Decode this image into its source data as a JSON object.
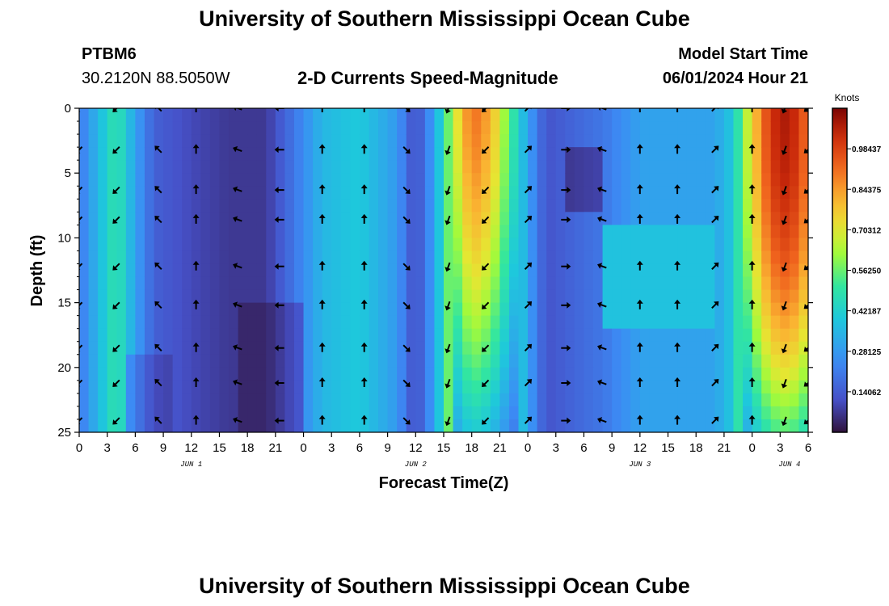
{
  "header": {
    "title": "University of Southern Mississippi Ocean Cube",
    "station": "PTBM6",
    "coords": "30.2120N  88.5050W",
    "chart_title": "2-D Currents Speed-Magnitude",
    "model_start_label": "Model Start Time",
    "model_start_value": "06/01/2024 Hour 21",
    "footer_title": "University of Southern Mississippi Ocean Cube"
  },
  "colorbar": {
    "unit": "Knots",
    "ticks": [
      "0.98437",
      "0.84375",
      "0.70312",
      "0.56250",
      "0.42187",
      "0.28125",
      "0.14062"
    ],
    "tick_values": [
      0.98437,
      0.84375,
      0.70312,
      0.5625,
      0.42187,
      0.28125,
      0.14062
    ],
    "min": 0.0,
    "max": 1.125
  },
  "chart_data": {
    "type": "heatmap",
    "title": "2-D Currents Speed-Magnitude",
    "xlabel": "Forecast Time(Z)",
    "ylabel": "Depth (ft)",
    "x_tick_labels": [
      "0",
      "3",
      "6",
      "9",
      "12",
      "15",
      "18",
      "21",
      "0",
      "3",
      "6",
      "9",
      "12",
      "15",
      "18",
      "21",
      "0",
      "3",
      "6",
      "9",
      "12",
      "15",
      "18",
      "21",
      "0",
      "3",
      "6"
    ],
    "x_range_hours": [
      0,
      78
    ],
    "day_labels": [
      {
        "label": "JUN 1",
        "hour": 12
      },
      {
        "label": "JUN 2",
        "hour": 36
      },
      {
        "label": "JUN 3",
        "hour": 60
      },
      {
        "label": "JUN 4",
        "hour": 76
      }
    ],
    "y_ticks": [
      0,
      5,
      10,
      15,
      20,
      25
    ],
    "ylim": [
      0,
      25
    ],
    "y_inverted": true,
    "value_unit": "Knots",
    "speed_profile": [
      {
        "hour": 0,
        "v": 0.2
      },
      {
        "hour": 2,
        "v": 0.35
      },
      {
        "hour": 4,
        "v": 0.5
      },
      {
        "hour": 6,
        "v": 0.3
      },
      {
        "hour": 8,
        "v": 0.15
      },
      {
        "hour": 12,
        "v": 0.1
      },
      {
        "hour": 16,
        "v": 0.07
      },
      {
        "hour": 20,
        "v": 0.07
      },
      {
        "hour": 23,
        "v": 0.2
      },
      {
        "hour": 26,
        "v": 0.35
      },
      {
        "hour": 30,
        "v": 0.4
      },
      {
        "hour": 34,
        "v": 0.28
      },
      {
        "hour": 36,
        "v": 0.1
      },
      {
        "hour": 38,
        "v": 0.3
      },
      {
        "hour": 40,
        "v": 0.65
      },
      {
        "hour": 42,
        "v": 0.92
      },
      {
        "hour": 44,
        "v": 0.82
      },
      {
        "hour": 46,
        "v": 0.55
      },
      {
        "hour": 48,
        "v": 0.3
      },
      {
        "hour": 50,
        "v": 0.12
      },
      {
        "hour": 52,
        "v": 0.15
      },
      {
        "hour": 56,
        "v": 0.2
      },
      {
        "hour": 60,
        "v": 0.3
      },
      {
        "hour": 64,
        "v": 0.3
      },
      {
        "hour": 68,
        "v": 0.3
      },
      {
        "hour": 70,
        "v": 0.4
      },
      {
        "hour": 72,
        "v": 0.75
      },
      {
        "hour": 74,
        "v": 1.02
      },
      {
        "hour": 76,
        "v": 1.08
      },
      {
        "hour": 78,
        "v": 0.9
      }
    ],
    "arrow_hours": [
      0,
      4,
      8.5,
      12.5,
      17,
      21.5,
      26,
      30.5,
      35,
      39.5,
      43.5,
      48,
      52,
      56,
      60,
      64,
      68,
      72,
      75.5,
      78
    ],
    "arrow_depths": [
      0,
      3.2,
      6.3,
      8.6,
      12.2,
      15.2,
      18.5,
      21.2,
      24.1
    ],
    "arrow_directions_deg": [
      225,
      225,
      315,
      0,
      290,
      270,
      0,
      0,
      135,
      200,
      225,
      45,
      90,
      290,
      0,
      0,
      45,
      0,
      200,
      230
    ]
  }
}
